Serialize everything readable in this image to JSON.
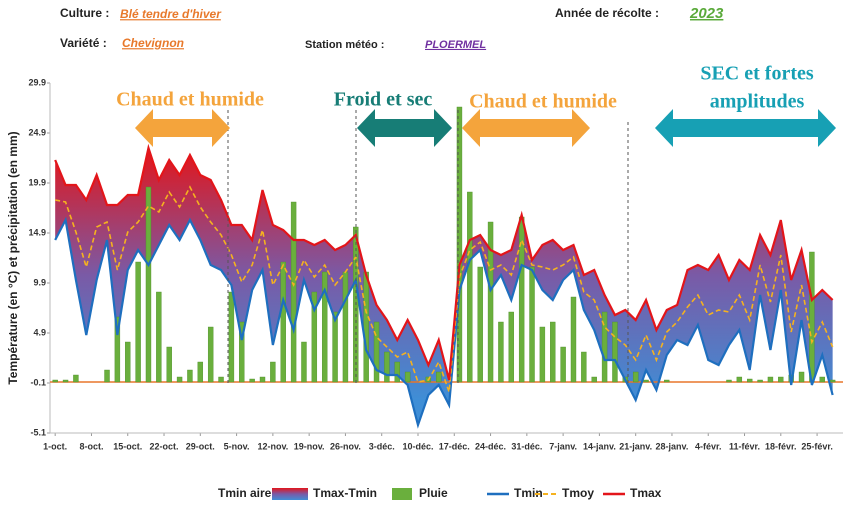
{
  "header": {
    "culture_label": "Culture :",
    "culture": "Blé tendre d'hiver",
    "harvest_label": "Année de récolte :",
    "harvest": "2023",
    "variety_label": "Variété :",
    "variety": "Chevignon",
    "station_label": "Station météo :",
    "station": "PLOERMEL"
  },
  "chart_data": {
    "type": "weather-band",
    "ylabel": "Température (en °C) et précipitation (en mm)",
    "legend_label": "Tmin aire",
    "band": {
      "name": "Tmax-Tmin",
      "colors": [
        "#e3151a",
        "#7a5aa6",
        "#3f8ed6"
      ]
    },
    "x": [
      0,
      2,
      4,
      6,
      8,
      10,
      12,
      14,
      16,
      18,
      20,
      22,
      24,
      26,
      28,
      30,
      32,
      34,
      36,
      38,
      40,
      42,
      44,
      46,
      48,
      50,
      52,
      54,
      56,
      58,
      60,
      62,
      64,
      66,
      68,
      70,
      72,
      74,
      76,
      78,
      80,
      82,
      84,
      86,
      88,
      90,
      92,
      94,
      96,
      98,
      100,
      102,
      104,
      106,
      108,
      110,
      112,
      114,
      116,
      118,
      120,
      122,
      124,
      126,
      128,
      130,
      132,
      134,
      136,
      138,
      140,
      142,
      144,
      146,
      148,
      150
    ],
    "xlim": [
      -1,
      152
    ],
    "xticks": [
      {
        "value": 0,
        "label": "1-oct."
      },
      {
        "value": 7,
        "label": "8-oct."
      },
      {
        "value": 14,
        "label": "15-oct."
      },
      {
        "value": 21,
        "label": "22-oct."
      },
      {
        "value": 28,
        "label": "29-oct."
      },
      {
        "value": 35,
        "label": "5-nov."
      },
      {
        "value": 42,
        "label": "12-nov."
      },
      {
        "value": 49,
        "label": "19-nov."
      },
      {
        "value": 56,
        "label": "26-nov."
      },
      {
        "value": 63,
        "label": "3-déc."
      },
      {
        "value": 70,
        "label": "10-déc."
      },
      {
        "value": 77,
        "label": "17-déc."
      },
      {
        "value": 84,
        "label": "24-déc."
      },
      {
        "value": 91,
        "label": "31-déc."
      },
      {
        "value": 98,
        "label": "7-janv."
      },
      {
        "value": 105,
        "label": "14-janv."
      },
      {
        "value": 112,
        "label": "21-janv."
      },
      {
        "value": 119,
        "label": "28-janv."
      },
      {
        "value": 126,
        "label": "4-févr."
      },
      {
        "value": 133,
        "label": "11-févr."
      },
      {
        "value": 140,
        "label": "18-févr."
      },
      {
        "value": 147,
        "label": "25-févr."
      }
    ],
    "ylim": [
      -5.1,
      29.9
    ],
    "yticks": [
      -5.1,
      -0.1,
      4.9,
      9.9,
      14.9,
      19.9,
      24.9,
      29.9
    ],
    "series": [
      {
        "name": "Pluie",
        "kind": "bar",
        "color": "#6aaf3d",
        "values": [
          0.2,
          0.2,
          0.7,
          0,
          0,
          1.2,
          6.5,
          4,
          12,
          19.5,
          9,
          3.5,
          0.5,
          1.2,
          2,
          5.5,
          0.5,
          9,
          6,
          0.3,
          0.5,
          2,
          12,
          18,
          4,
          9,
          11,
          7,
          11,
          15.5,
          11,
          6,
          3,
          2,
          1,
          0,
          0.5,
          1,
          0,
          27.5,
          19,
          11.5,
          16,
          6,
          7,
          16.5,
          11.5,
          5.5,
          6,
          3.5,
          8.5,
          3,
          0.5,
          7,
          6,
          0.5,
          1,
          0.2,
          0,
          0.2,
          0,
          0,
          0,
          0,
          0,
          0.2,
          0.5,
          0.3,
          0.2,
          0.5,
          0.5,
          0.7,
          1,
          13,
          0.5,
          0.2
        ]
      },
      {
        "name": "Tmin",
        "kind": "line",
        "color": "#1e6fbf",
        "values": [
          14.2,
          16.2,
          10.2,
          4.7,
          10.2,
          14.2,
          4.7,
          11.2,
          13.2,
          11.7,
          13.7,
          15.7,
          14.2,
          16.2,
          14.2,
          11.7,
          11.2,
          9.7,
          4.2,
          9.2,
          11.2,
          3.7,
          8.2,
          5.2,
          10.2,
          7.2,
          9.2,
          6.2,
          8.2,
          10.2,
          3.2,
          1.2,
          0.7,
          0.7,
          -0.3,
          -4.3,
          -1.3,
          -0.3,
          -2.3,
          9.2,
          12.2,
          13.2,
          9.2,
          10.7,
          8.2,
          11.7,
          11.2,
          9.2,
          8.2,
          10.2,
          11.2,
          7.2,
          5.2,
          2.2,
          2.2,
          0.2,
          -1.8,
          1.2,
          -0.8,
          2.7,
          4.2,
          3.7,
          5.7,
          2.2,
          1.7,
          3.7,
          5.2,
          1.2,
          8.7,
          3.2,
          9.2,
          -0.3,
          6.2,
          -0.3,
          2.7,
          -1.3
        ]
      },
      {
        "name": "Tmoy",
        "kind": "dashed",
        "color": "#f5b21f",
        "values": [
          18.2,
          18,
          15,
          11.5,
          15.5,
          16,
          11.2,
          15,
          16,
          17.6,
          17,
          19,
          17.5,
          19.5,
          17.5,
          16,
          14.7,
          12.7,
          10,
          11.7,
          15.2,
          9.7,
          11.7,
          9.7,
          12.2,
          10.5,
          11.7,
          9.7,
          11,
          12.5,
          7,
          4.5,
          3.5,
          2.5,
          3,
          0,
          0.2,
          2,
          -1,
          10.5,
          13.2,
          14,
          11.2,
          11.7,
          10.7,
          14.2,
          11.7,
          11.5,
          11.2,
          11.7,
          12.5,
          9,
          8.2,
          5.5,
          4.5,
          3.7,
          2.2,
          4.7,
          2.2,
          5,
          6,
          7.5,
          8.7,
          6.7,
          7.2,
          7,
          8.7,
          6.2,
          11.7,
          8,
          12.7,
          5,
          9.7,
          4,
          6,
          3.5
        ]
      },
      {
        "name": "Tmax",
        "kind": "line",
        "color": "#e3151a",
        "values": [
          22.2,
          19.7,
          19.7,
          18.2,
          20.7,
          17.7,
          17.7,
          18.7,
          18.7,
          23.4,
          20.2,
          22.2,
          20.7,
          22.7,
          20.7,
          20.2,
          18.2,
          15.7,
          15.7,
          14.2,
          19.2,
          15.7,
          15.2,
          14.2,
          14.2,
          13.7,
          14.2,
          13.2,
          13.7,
          14.7,
          10.7,
          7.7,
          6.2,
          4.2,
          6.2,
          4.2,
          1.7,
          4.2,
          0.2,
          11.7,
          14.2,
          14.7,
          13.2,
          12.7,
          13.2,
          16.7,
          12.2,
          13.7,
          14.2,
          13.2,
          13.7,
          10.7,
          11.2,
          8.7,
          6.7,
          7.2,
          6.2,
          8.2,
          5.2,
          7.2,
          7.7,
          11.2,
          11.7,
          11.2,
          12.7,
          10.2,
          12.2,
          11.2,
          14.7,
          12.7,
          16.2,
          10.2,
          13.2,
          8.2,
          9.2,
          8.2
        ]
      }
    ],
    "annotations": [
      {
        "lines": [
          "Chaud et humide"
        ],
        "color": "#f4a43c"
      },
      {
        "lines": [
          "Froid et sec"
        ],
        "color": "#177d76"
      },
      {
        "lines": [
          "Chaud et humide"
        ],
        "color": "#f4a43c"
      },
      {
        "lines": [
          "SEC et fortes",
          "amplitudes"
        ],
        "color": "#17a0b4"
      }
    ]
  }
}
